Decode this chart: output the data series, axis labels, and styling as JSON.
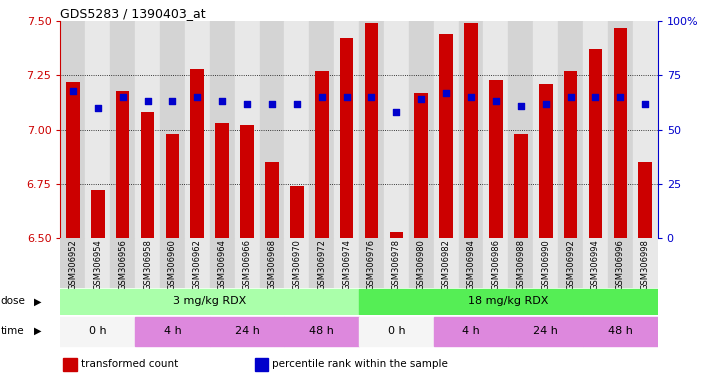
{
  "title": "GDS5283 / 1390403_at",
  "samples": [
    "GSM306952",
    "GSM306954",
    "GSM306956",
    "GSM306958",
    "GSM306960",
    "GSM306962",
    "GSM306964",
    "GSM306966",
    "GSM306968",
    "GSM306970",
    "GSM306972",
    "GSM306974",
    "GSM306976",
    "GSM306978",
    "GSM306980",
    "GSM306982",
    "GSM306984",
    "GSM306986",
    "GSM306988",
    "GSM306990",
    "GSM306992",
    "GSM306994",
    "GSM306996",
    "GSM306998"
  ],
  "bar_values": [
    7.22,
    6.72,
    7.18,
    7.08,
    6.98,
    7.28,
    7.03,
    7.02,
    6.85,
    6.74,
    7.27,
    7.42,
    7.49,
    6.53,
    7.17,
    7.44,
    7.49,
    7.23,
    6.98,
    7.21,
    7.27,
    7.37,
    7.47,
    6.85
  ],
  "percentile_values": [
    68,
    60,
    65,
    63,
    63,
    65,
    63,
    62,
    62,
    62,
    65,
    65,
    65,
    58,
    64,
    67,
    65,
    63,
    61,
    62,
    65,
    65,
    65,
    62
  ],
  "ymin": 6.5,
  "ymax": 7.5,
  "yticks": [
    6.5,
    6.75,
    7.0,
    7.25,
    7.5
  ],
  "pct_yticks": [
    0,
    25,
    50,
    75,
    100
  ],
  "bar_color": "#cc0000",
  "dot_color": "#0000cc",
  "plot_bg": "#e0e0e0",
  "dose_groups": [
    {
      "label": "3 mg/kg RDX",
      "start": 0,
      "end": 12,
      "color": "#aaffaa"
    },
    {
      "label": "18 mg/kg RDX",
      "start": 12,
      "end": 24,
      "color": "#55ee55"
    }
  ],
  "time_groups": [
    {
      "label": "0 h",
      "start": 0,
      "end": 3,
      "color": "#f8f8f8"
    },
    {
      "label": "4 h",
      "start": 3,
      "end": 6,
      "color": "#ee88ee"
    },
    {
      "label": "24 h",
      "start": 6,
      "end": 9,
      "color": "#ee88ee"
    },
    {
      "label": "48 h",
      "start": 9,
      "end": 12,
      "color": "#ee88ee"
    },
    {
      "label": "0 h",
      "start": 12,
      "end": 15,
      "color": "#f8f8f8"
    },
    {
      "label": "4 h",
      "start": 15,
      "end": 18,
      "color": "#ee88ee"
    },
    {
      "label": "24 h",
      "start": 18,
      "end": 21,
      "color": "#ee88ee"
    },
    {
      "label": "48 h",
      "start": 21,
      "end": 24,
      "color": "#ee88ee"
    }
  ],
  "legend_items": [
    {
      "label": "transformed count",
      "color": "#cc0000"
    },
    {
      "label": "percentile rank within the sample",
      "color": "#0000cc"
    }
  ]
}
